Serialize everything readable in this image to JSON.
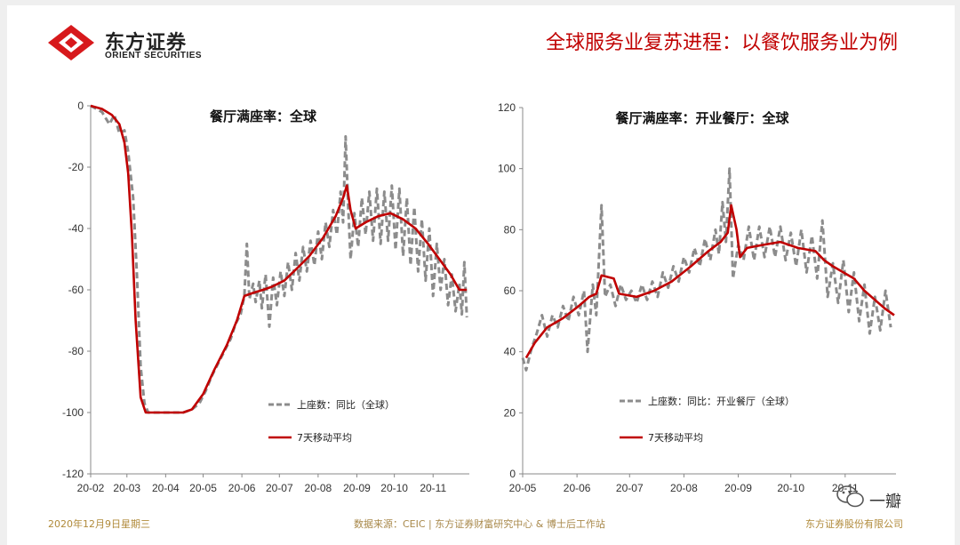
{
  "header": {
    "logo_name": "东方证券",
    "logo_sub": "ORIENT SECURITIES",
    "title": "全球服务业复苏进程：以餐饮服务业为例"
  },
  "footer": {
    "date": "2020年12月9日星期三",
    "source": "数据来源：CEIC | 东方证券财富研究中心 & 博士后工作站",
    "company": "东方证券股份有限公司"
  },
  "watermark": {
    "text": "一瓣"
  },
  "colors": {
    "accent": "#c00000",
    "dashed": "#8c8c8c",
    "footer": "#b08a3a"
  },
  "chart_data": [
    {
      "type": "line",
      "title": "餐厅满座率：全球",
      "xlabel": "",
      "ylabel": "",
      "ylim": [
        -120,
        0
      ],
      "yticks": [
        0,
        -20,
        -40,
        -60,
        -80,
        -100,
        -120
      ],
      "xlim": [
        "2020-02-01",
        "2020-11-30"
      ],
      "xtick_labels": [
        "20-02",
        "20-03",
        "20-04",
        "20-05",
        "20-06",
        "20-07",
        "20-08",
        "20-09",
        "20-10",
        "20-11"
      ],
      "xtick_dates": [
        "2020-02-01",
        "2020-03-01",
        "2020-04-01",
        "2020-05-01",
        "2020-06-01",
        "2020-07-01",
        "2020-08-01",
        "2020-09-01",
        "2020-10-01",
        "2020-11-01"
      ],
      "legend_position": "bottom-center",
      "series": [
        {
          "name": "上座数：同比（全球）",
          "style": "dashed",
          "points": [
            [
              "2020-02-01",
              0
            ],
            [
              "2020-02-10",
              -2
            ],
            [
              "2020-02-16",
              -6
            ],
            [
              "2020-02-20",
              -3
            ],
            [
              "2020-02-24",
              -9
            ],
            [
              "2020-02-28",
              -8
            ],
            [
              "2020-03-02",
              -15
            ],
            [
              "2020-03-06",
              -30
            ],
            [
              "2020-03-09",
              -55
            ],
            [
              "2020-03-12",
              -85
            ],
            [
              "2020-03-15",
              -97
            ],
            [
              "2020-03-18",
              -100
            ],
            [
              "2020-04-01",
              -100
            ],
            [
              "2020-04-15",
              -100
            ],
            [
              "2020-04-22",
              -99
            ],
            [
              "2020-04-28",
              -97
            ],
            [
              "2020-05-03",
              -93
            ],
            [
              "2020-05-08",
              -88
            ],
            [
              "2020-05-13",
              -84
            ],
            [
              "2020-05-18",
              -80
            ],
            [
              "2020-05-23",
              -76
            ],
            [
              "2020-05-27",
              -71
            ],
            [
              "2020-05-31",
              -68
            ],
            [
              "2020-06-03",
              -62
            ],
            [
              "2020-06-05",
              -45
            ],
            [
              "2020-06-07",
              -63
            ],
            [
              "2020-06-10",
              -58
            ],
            [
              "2020-06-12",
              -64
            ],
            [
              "2020-06-15",
              -57
            ],
            [
              "2020-06-17",
              -66
            ],
            [
              "2020-06-20",
              -55
            ],
            [
              "2020-06-23",
              -72
            ],
            [
              "2020-06-26",
              -56
            ],
            [
              "2020-06-29",
              -65
            ],
            [
              "2020-07-02",
              -54
            ],
            [
              "2020-07-05",
              -62
            ],
            [
              "2020-07-08",
              -51
            ],
            [
              "2020-07-11",
              -60
            ],
            [
              "2020-07-14",
              -48
            ],
            [
              "2020-07-17",
              -57
            ],
            [
              "2020-07-20",
              -46
            ],
            [
              "2020-07-23",
              -54
            ],
            [
              "2020-07-26",
              -44
            ],
            [
              "2020-07-29",
              -52
            ],
            [
              "2020-08-01",
              -41
            ],
            [
              "2020-08-04",
              -50
            ],
            [
              "2020-08-07",
              -38
            ],
            [
              "2020-08-10",
              -46
            ],
            [
              "2020-08-13",
              -34
            ],
            [
              "2020-08-16",
              -42
            ],
            [
              "2020-08-19",
              -28
            ],
            [
              "2020-08-21",
              -38
            ],
            [
              "2020-08-23",
              -10
            ],
            [
              "2020-08-25",
              -32
            ],
            [
              "2020-08-27",
              -50
            ],
            [
              "2020-08-30",
              -35
            ],
            [
              "2020-09-02",
              -46
            ],
            [
              "2020-09-05",
              -30
            ],
            [
              "2020-09-08",
              -42
            ],
            [
              "2020-09-11",
              -28
            ],
            [
              "2020-09-14",
              -44
            ],
            [
              "2020-09-17",
              -27
            ],
            [
              "2020-09-20",
              -45
            ],
            [
              "2020-09-23",
              -28
            ],
            [
              "2020-09-26",
              -44
            ],
            [
              "2020-09-29",
              -26
            ],
            [
              "2020-10-02",
              -47
            ],
            [
              "2020-10-05",
              -27
            ],
            [
              "2020-10-08",
              -49
            ],
            [
              "2020-10-11",
              -30
            ],
            [
              "2020-10-14",
              -52
            ],
            [
              "2020-10-17",
              -33
            ],
            [
              "2020-10-20",
              -54
            ],
            [
              "2020-10-23",
              -37
            ],
            [
              "2020-10-26",
              -57
            ],
            [
              "2020-10-29",
              -40
            ],
            [
              "2020-11-01",
              -62
            ],
            [
              "2020-11-04",
              -45
            ],
            [
              "2020-11-07",
              -60
            ],
            [
              "2020-11-10",
              -50
            ],
            [
              "2020-11-13",
              -65
            ],
            [
              "2020-11-16",
              -55
            ],
            [
              "2020-11-19",
              -67
            ],
            [
              "2020-11-22",
              -58
            ],
            [
              "2020-11-24",
              -68
            ],
            [
              "2020-11-26",
              -51
            ],
            [
              "2020-11-28",
              -69
            ]
          ]
        },
        {
          "name": "7天移动平均",
          "style": "solid",
          "points": [
            [
              "2020-02-01",
              0
            ],
            [
              "2020-02-10",
              -1
            ],
            [
              "2020-02-18",
              -3
            ],
            [
              "2020-02-24",
              -6
            ],
            [
              "2020-02-28",
              -12
            ],
            [
              "2020-03-02",
              -22
            ],
            [
              "2020-03-05",
              -42
            ],
            [
              "2020-03-08",
              -70
            ],
            [
              "2020-03-12",
              -95
            ],
            [
              "2020-03-16",
              -100
            ],
            [
              "2020-04-15",
              -100
            ],
            [
              "2020-04-22",
              -99
            ],
            [
              "2020-05-01",
              -94
            ],
            [
              "2020-05-10",
              -86
            ],
            [
              "2020-05-20",
              -78
            ],
            [
              "2020-05-28",
              -70
            ],
            [
              "2020-06-03",
              -62
            ],
            [
              "2020-06-10",
              -61
            ],
            [
              "2020-06-18",
              -60
            ],
            [
              "2020-06-25",
              -59
            ],
            [
              "2020-07-05",
              -57
            ],
            [
              "2020-07-15",
              -53
            ],
            [
              "2020-07-25",
              -49
            ],
            [
              "2020-08-05",
              -43
            ],
            [
              "2020-08-15",
              -36
            ],
            [
              "2020-08-21",
              -30
            ],
            [
              "2020-08-24",
              -26
            ],
            [
              "2020-08-27",
              -34
            ],
            [
              "2020-08-31",
              -40
            ],
            [
              "2020-09-08",
              -38
            ],
            [
              "2020-09-18",
              -36
            ],
            [
              "2020-09-28",
              -35
            ],
            [
              "2020-10-08",
              -37
            ],
            [
              "2020-10-18",
              -40
            ],
            [
              "2020-10-28",
              -45
            ],
            [
              "2020-11-06",
              -50
            ],
            [
              "2020-11-15",
              -55
            ],
            [
              "2020-11-22",
              -60
            ],
            [
              "2020-11-28",
              -60
            ]
          ]
        }
      ]
    },
    {
      "type": "line",
      "title": "餐厅满座率：开业餐厅：全球",
      "xlabel": "",
      "ylabel": "",
      "ylim": [
        0,
        120
      ],
      "yticks": [
        120,
        100,
        80,
        60,
        40,
        20,
        0
      ],
      "xlim": [
        "2020-05-01",
        "2020-11-30"
      ],
      "xtick_labels": [
        "20-05",
        "20-06",
        "20-07",
        "20-08",
        "20-09",
        "20-10",
        "20-11"
      ],
      "xtick_dates": [
        "2020-05-01",
        "2020-06-01",
        "2020-07-01",
        "2020-08-01",
        "2020-09-01",
        "2020-10-01",
        "2020-11-01"
      ],
      "legend_position": "bottom-center",
      "series": [
        {
          "name": "上座数：同比：开业餐厅（全球）",
          "style": "dashed",
          "points": [
            [
              "2020-05-01",
              38
            ],
            [
              "2020-05-03",
              34
            ],
            [
              "2020-05-06",
              41
            ],
            [
              "2020-05-09",
              46
            ],
            [
              "2020-05-12",
              52
            ],
            [
              "2020-05-15",
              45
            ],
            [
              "2020-05-18",
              52
            ],
            [
              "2020-05-21",
              48
            ],
            [
              "2020-05-24",
              55
            ],
            [
              "2020-05-27",
              50
            ],
            [
              "2020-05-30",
              58
            ],
            [
              "2020-06-02",
              52
            ],
            [
              "2020-06-05",
              60
            ],
            [
              "2020-06-07",
              40
            ],
            [
              "2020-06-10",
              62
            ],
            [
              "2020-06-12",
              52
            ],
            [
              "2020-06-15",
              88
            ],
            [
              "2020-06-17",
              58
            ],
            [
              "2020-06-20",
              62
            ],
            [
              "2020-06-23",
              55
            ],
            [
              "2020-06-26",
              62
            ],
            [
              "2020-06-29",
              57
            ],
            [
              "2020-07-02",
              60
            ],
            [
              "2020-07-05",
              56
            ],
            [
              "2020-07-08",
              62
            ],
            [
              "2020-07-11",
              57
            ],
            [
              "2020-07-14",
              63
            ],
            [
              "2020-07-17",
              58
            ],
            [
              "2020-07-20",
              66
            ],
            [
              "2020-07-23",
              61
            ],
            [
              "2020-07-26",
              68
            ],
            [
              "2020-07-29",
              63
            ],
            [
              "2020-08-01",
              71
            ],
            [
              "2020-08-04",
              66
            ],
            [
              "2020-08-07",
              74
            ],
            [
              "2020-08-10",
              68
            ],
            [
              "2020-08-13",
              77
            ],
            [
              "2020-08-16",
              70
            ],
            [
              "2020-08-19",
              80
            ],
            [
              "2020-08-21",
              72
            ],
            [
              "2020-08-23",
              89
            ],
            [
              "2020-08-25",
              76
            ],
            [
              "2020-08-27",
              100
            ],
            [
              "2020-08-29",
              64
            ],
            [
              "2020-09-01",
              75
            ],
            [
              "2020-09-04",
              70
            ],
            [
              "2020-09-07",
              81
            ],
            [
              "2020-09-10",
              70
            ],
            [
              "2020-09-13",
              81
            ],
            [
              "2020-09-16",
              71
            ],
            [
              "2020-09-19",
              81
            ],
            [
              "2020-09-22",
              71
            ],
            [
              "2020-09-25",
              81
            ],
            [
              "2020-09-28",
              70
            ],
            [
              "2020-10-01",
              79
            ],
            [
              "2020-10-04",
              68
            ],
            [
              "2020-10-07",
              80
            ],
            [
              "2020-10-10",
              66
            ],
            [
              "2020-10-13",
              78
            ],
            [
              "2020-10-16",
              64
            ],
            [
              "2020-10-19",
              83
            ],
            [
              "2020-10-22",
              58
            ],
            [
              "2020-10-25",
              69
            ],
            [
              "2020-10-28",
              56
            ],
            [
              "2020-10-31",
              70
            ],
            [
              "2020-11-03",
              53
            ],
            [
              "2020-11-06",
              66
            ],
            [
              "2020-11-09",
              50
            ],
            [
              "2020-11-12",
              62
            ],
            [
              "2020-11-15",
              46
            ],
            [
              "2020-11-18",
              58
            ],
            [
              "2020-11-21",
              47
            ],
            [
              "2020-11-24",
              60
            ],
            [
              "2020-11-27",
              48
            ]
          ]
        },
        {
          "name": "7天移动平均",
          "style": "solid",
          "points": [
            [
              "2020-05-03",
              38
            ],
            [
              "2020-05-08",
              43
            ],
            [
              "2020-05-15",
              48
            ],
            [
              "2020-05-24",
              51
            ],
            [
              "2020-06-02",
              55
            ],
            [
              "2020-06-08",
              58
            ],
            [
              "2020-06-12",
              59
            ],
            [
              "2020-06-15",
              65
            ],
            [
              "2020-06-22",
              64
            ],
            [
              "2020-06-25",
              59
            ],
            [
              "2020-07-05",
              58
            ],
            [
              "2020-07-15",
              60
            ],
            [
              "2020-07-25",
              63
            ],
            [
              "2020-08-05",
              68
            ],
            [
              "2020-08-15",
              73
            ],
            [
              "2020-08-22",
              76
            ],
            [
              "2020-08-26",
              79
            ],
            [
              "2020-08-28",
              88
            ],
            [
              "2020-08-31",
              80
            ],
            [
              "2020-09-02",
              71
            ],
            [
              "2020-09-06",
              74
            ],
            [
              "2020-09-15",
              75
            ],
            [
              "2020-09-25",
              76
            ],
            [
              "2020-10-05",
              74
            ],
            [
              "2020-10-15",
              73
            ],
            [
              "2020-10-20",
              70
            ],
            [
              "2020-10-25",
              68
            ],
            [
              "2020-10-31",
              66
            ],
            [
              "2020-11-06",
              64
            ],
            [
              "2020-11-12",
              60
            ],
            [
              "2020-11-18",
              57
            ],
            [
              "2020-11-24",
              54
            ],
            [
              "2020-11-29",
              52
            ]
          ]
        }
      ]
    }
  ]
}
